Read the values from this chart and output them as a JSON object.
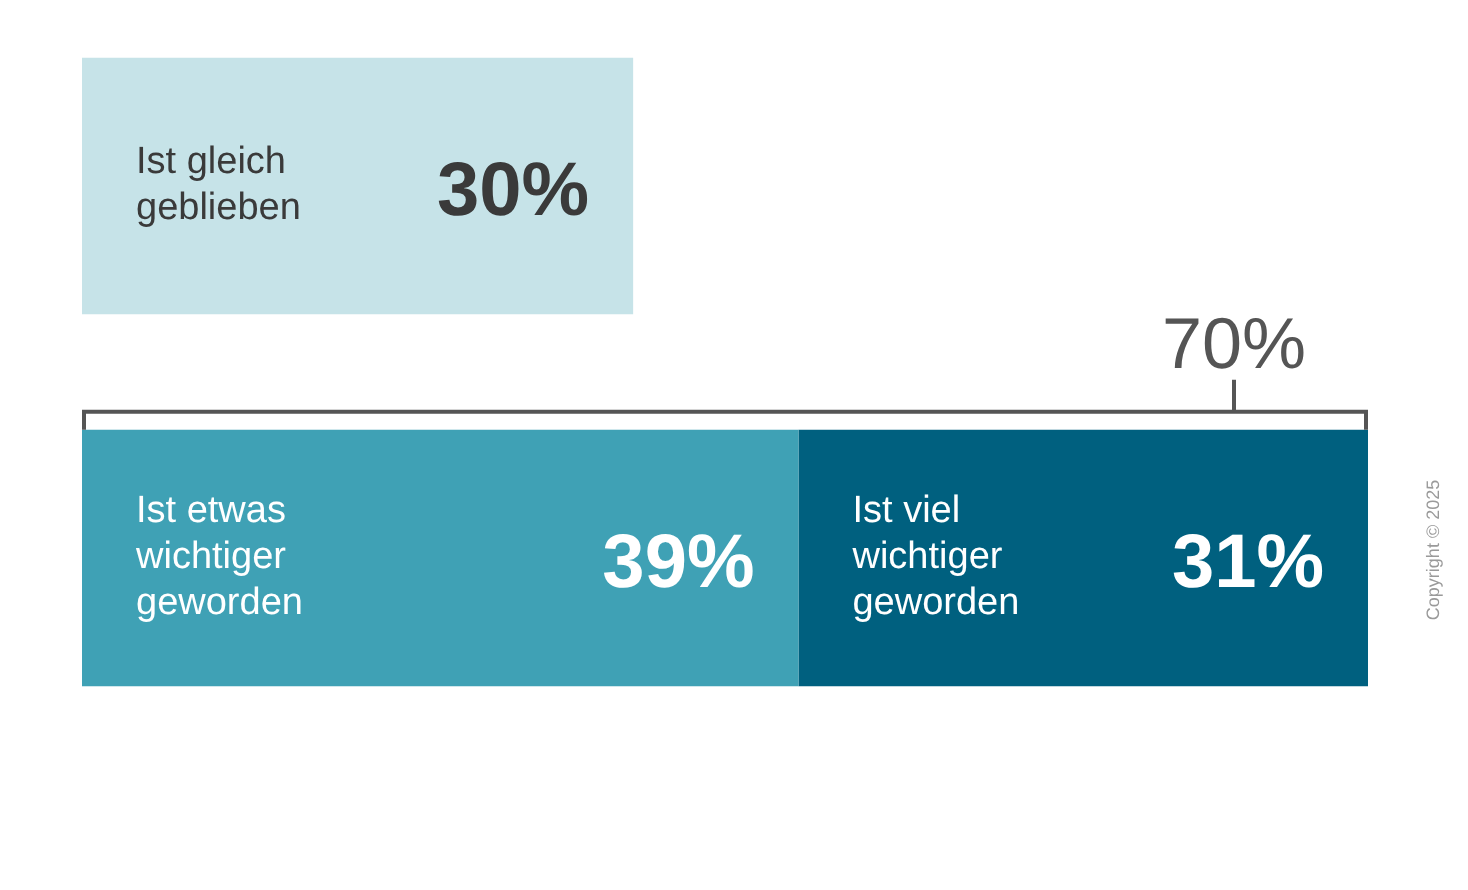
{
  "chart_data": {
    "type": "bar",
    "orientation": "horizontal",
    "stacked": true,
    "categories": [
      null,
      null
    ],
    "series": [
      {
        "name": "Ist gleich geblieben",
        "color": "#c6e3e8",
        "values": [
          30,
          null
        ],
        "value_labels": [
          "30%",
          null
        ]
      },
      {
        "name": "Ist etwas wichtiger geworden",
        "color": "#3fa1b5",
        "values": [
          null,
          39
        ],
        "value_labels": [
          null,
          "39%"
        ]
      },
      {
        "name": "Ist viel wichtiger geworden",
        "color": "#00607f",
        "values": [
          null,
          31
        ],
        "value_labels": [
          null,
          "31%"
        ]
      }
    ],
    "totals": [
      null,
      "70%"
    ],
    "annotations": [
      "Copyright © 2025"
    ],
    "legend": false,
    "tick_labels": false
  }
}
